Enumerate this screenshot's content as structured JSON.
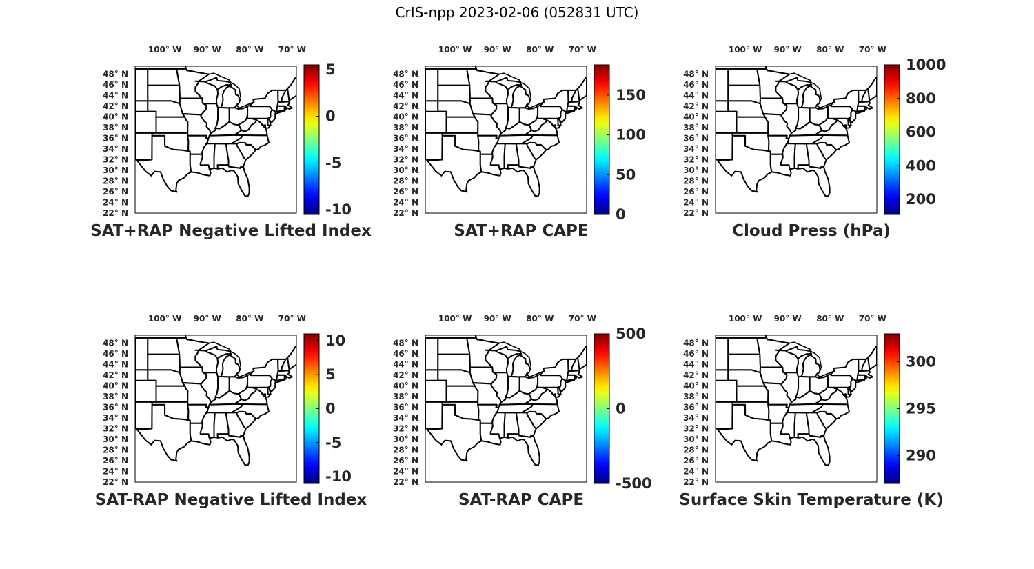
{
  "title": "CrIS-npp 2023-02-06 (052831 UTC)",
  "lon_ticks": [
    "100° W",
    "90° W",
    "80° W",
    "70° W"
  ],
  "lon_values": [
    -100,
    -90,
    -80,
    -70
  ],
  "lat_ticks": [
    "48° N",
    "46° N",
    "44° N",
    "42° N",
    "40° N",
    "38° N",
    "36° N",
    "34° N",
    "32° N",
    "30° N",
    "28° N",
    "26° N",
    "24° N",
    "22° N"
  ],
  "lat_values": [
    48,
    46,
    44,
    42,
    40,
    38,
    36,
    34,
    32,
    30,
    28,
    26,
    24,
    22
  ],
  "map_extent": {
    "lon": [
      -107,
      -69
    ],
    "lat": [
      22,
      49.5
    ]
  },
  "colormap": "jet",
  "panels": [
    {
      "id": "sat-rap-plus-nli",
      "label": "SAT+RAP Negative Lifted Index",
      "cbar_range": [
        -10.5,
        5.5
      ],
      "cbar_ticks": [
        "5",
        "0",
        "-5",
        "-10"
      ],
      "cbar_values": [
        5,
        0,
        -5,
        -10
      ]
    },
    {
      "id": "sat-rap-plus-cape",
      "label": "SAT+RAP CAPE",
      "cbar_range": [
        0,
        188
      ],
      "cbar_ticks": [
        "150",
        "100",
        "50",
        "0"
      ],
      "cbar_values": [
        150,
        100,
        50,
        0
      ]
    },
    {
      "id": "cloud-press",
      "label": "Cloud Press (hPa)",
      "cbar_range": [
        110,
        1000
      ],
      "cbar_ticks": [
        "1000",
        "800",
        "600",
        "400",
        "200"
      ],
      "cbar_values": [
        1000,
        800,
        600,
        400,
        200
      ]
    },
    {
      "id": "sat-minus-rap-nli",
      "label": "SAT-RAP Negative Lifted Index",
      "cbar_range": [
        -11,
        11
      ],
      "cbar_ticks": [
        "10",
        "5",
        "0",
        "-5",
        "-10"
      ],
      "cbar_values": [
        10,
        5,
        0,
        -5,
        -10
      ]
    },
    {
      "id": "sat-minus-rap-cape",
      "label": "SAT-RAP CAPE",
      "cbar_range": [
        -500,
        500
      ],
      "cbar_ticks": [
        "500",
        "0",
        "-500"
      ],
      "cbar_values": [
        500,
        0,
        -500
      ]
    },
    {
      "id": "surface-skin-temp",
      "label": "Surface Skin Temperature (K)",
      "cbar_range": [
        287,
        303
      ],
      "cbar_ticks": [
        "300",
        "295",
        "290"
      ],
      "cbar_values": [
        300,
        295,
        290
      ]
    }
  ]
}
